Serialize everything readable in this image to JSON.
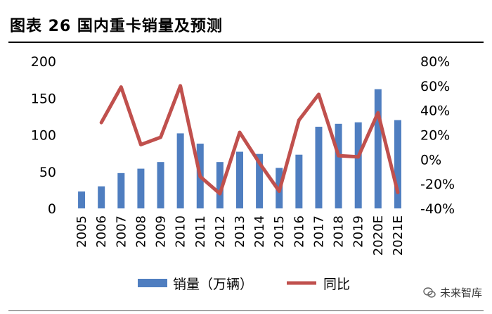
{
  "figure_title": "图表 26  国内重卡销量及预测",
  "watermark": "未来智库",
  "colors": {
    "bar": "#4F7EC0",
    "line": "#C0504D",
    "text": "#000000"
  },
  "chart_data": {
    "type": "bar",
    "categories": [
      "2005",
      "2006",
      "2007",
      "2008",
      "2009",
      "2010",
      "2011",
      "2012",
      "2013",
      "2014",
      "2015",
      "2016",
      "2017",
      "2018",
      "2019",
      "2020E",
      "2021E"
    ],
    "series": [
      {
        "name": "销量（万辆）",
        "type": "bar",
        "axis": "left",
        "values": [
          23,
          30,
          48,
          54,
          63,
          102,
          88,
          63,
          77,
          74,
          55,
          73,
          111,
          115,
          117,
          162,
          120
        ]
      },
      {
        "name": "同比",
        "type": "line",
        "axis": "right",
        "unit": "%",
        "values": [
          null,
          30,
          59,
          12,
          18,
          60,
          -14,
          -28,
          22,
          -3,
          -26,
          32,
          53,
          3,
          2,
          38,
          -27
        ]
      }
    ],
    "y_left": {
      "min": 0,
      "max": 200,
      "ticks": [
        "0",
        "50",
        "100",
        "150",
        "200"
      ]
    },
    "y_right": {
      "min": -40,
      "max": 80,
      "ticks": [
        "-40%",
        "-20%",
        "0%",
        "20%",
        "40%",
        "60%",
        "80%"
      ]
    },
    "grid": false,
    "legend_position": "bottom"
  }
}
